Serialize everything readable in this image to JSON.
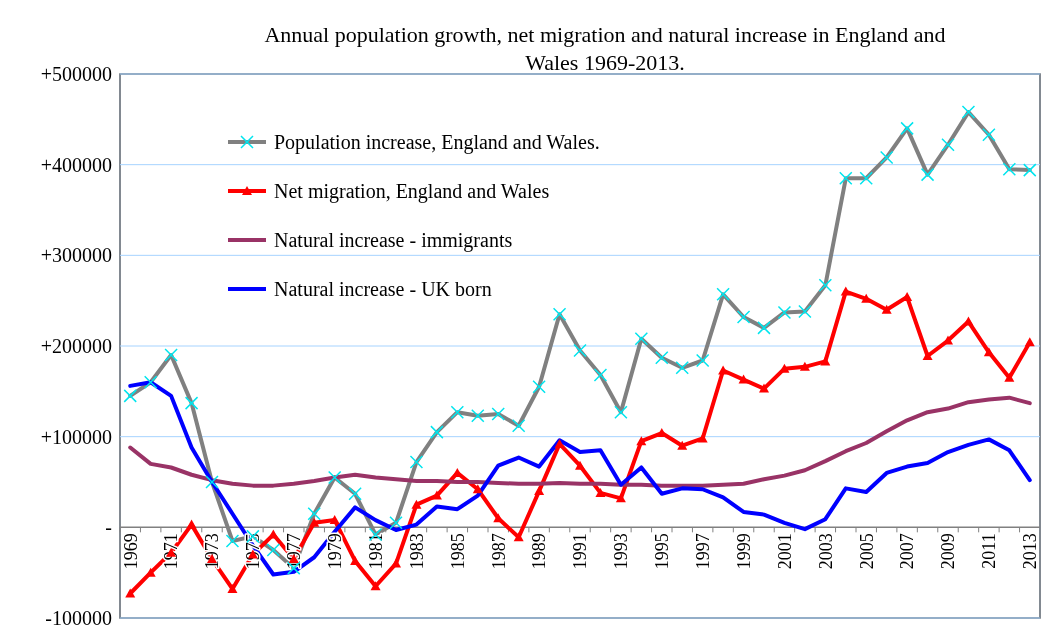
{
  "chart_data": {
    "type": "line",
    "title": "Annual population growth, net migration and natural increase in England and Wales 1969-2013.",
    "categories": [
      "1969",
      null,
      "1971",
      null,
      "1973",
      null,
      "1975",
      null,
      "1977",
      null,
      "1979",
      null,
      "1981",
      null,
      "1983",
      null,
      "1985",
      null,
      "1987",
      null,
      "1989",
      null,
      "1991",
      null,
      "1993",
      null,
      "1995",
      null,
      "1997",
      null,
      "1999",
      null,
      "2001",
      null,
      "2003",
      null,
      "2005",
      null,
      "2007",
      null,
      "2009",
      null,
      "2011",
      null,
      "2013"
    ],
    "series": [
      {
        "name": "Population increase, England and Wales.",
        "color": "#808080",
        "marker": "cross",
        "values": [
          145000,
          160000,
          190000,
          137000,
          50000,
          -15000,
          -10000,
          -25000,
          -45000,
          15000,
          55000,
          37000,
          -8000,
          5000,
          72000,
          105000,
          127000,
          123000,
          125000,
          112000,
          155000,
          235000,
          195000,
          168000,
          127000,
          208000,
          187000,
          176000,
          184000,
          257000,
          232000,
          220000,
          237000,
          238000,
          267000,
          385000,
          385000,
          408000,
          440000,
          389000,
          422000,
          458000,
          433000,
          395000,
          394000
        ]
      },
      {
        "name": "Net migration, England and Wales",
        "color": "#ff0000",
        "marker": "triangle",
        "values": [
          -73000,
          -50000,
          -28000,
          3000,
          -35000,
          -68000,
          -30000,
          -8000,
          -35000,
          5000,
          8000,
          -37000,
          -65000,
          -40000,
          25000,
          35000,
          60000,
          42000,
          10000,
          -11000,
          40000,
          92000,
          68000,
          38000,
          32000,
          95000,
          104000,
          90000,
          98000,
          173000,
          163000,
          153000,
          175000,
          177000,
          183000,
          260000,
          252000,
          240000,
          254000,
          189000,
          206000,
          227000,
          193000,
          165000,
          204000
        ]
      },
      {
        "name": "Natural increase - immigrants",
        "color": "#993366",
        "values": [
          88000,
          70000,
          66000,
          58000,
          52000,
          48000,
          46000,
          46000,
          48000,
          51000,
          55000,
          58000,
          55000,
          53000,
          51000,
          51000,
          50000,
          50000,
          49000,
          48000,
          48000,
          49000,
          48000,
          48000,
          47000,
          47000,
          46000,
          46000,
          46000,
          47000,
          48000,
          53000,
          57000,
          63000,
          73000,
          84000,
          93000,
          106000,
          118000,
          127000,
          131000,
          138000,
          141000,
          143000,
          137000
        ]
      },
      {
        "name": "Natural increase - UK born",
        "color": "#0000ff",
        "values": [
          156000,
          160000,
          145000,
          88000,
          50000,
          15000,
          -20000,
          -52000,
          -49000,
          -33000,
          -5000,
          22000,
          8000,
          -3000,
          3000,
          23000,
          20000,
          35000,
          68000,
          77000,
          67000,
          96000,
          83000,
          85000,
          47000,
          66000,
          37000,
          43000,
          42000,
          33000,
          17000,
          14000,
          5000,
          -2000,
          9000,
          43000,
          39000,
          60000,
          67000,
          71000,
          83000,
          91000,
          97000,
          85000,
          52000
        ]
      }
    ],
    "ylim": [
      -100000,
      500000
    ],
    "yticks": [
      {
        "value": -100000,
        "label": "-100000"
      },
      {
        "value": 0,
        "label": "-"
      },
      {
        "value": 100000,
        "label": "+100000"
      },
      {
        "value": 200000,
        "label": "+200000"
      },
      {
        "value": 300000,
        "label": "+300000"
      },
      {
        "value": 400000,
        "label": "+400000"
      },
      {
        "value": 500000,
        "label": "+500000"
      }
    ],
    "grid": "y",
    "legend": "top left",
    "line_style": "solid"
  }
}
